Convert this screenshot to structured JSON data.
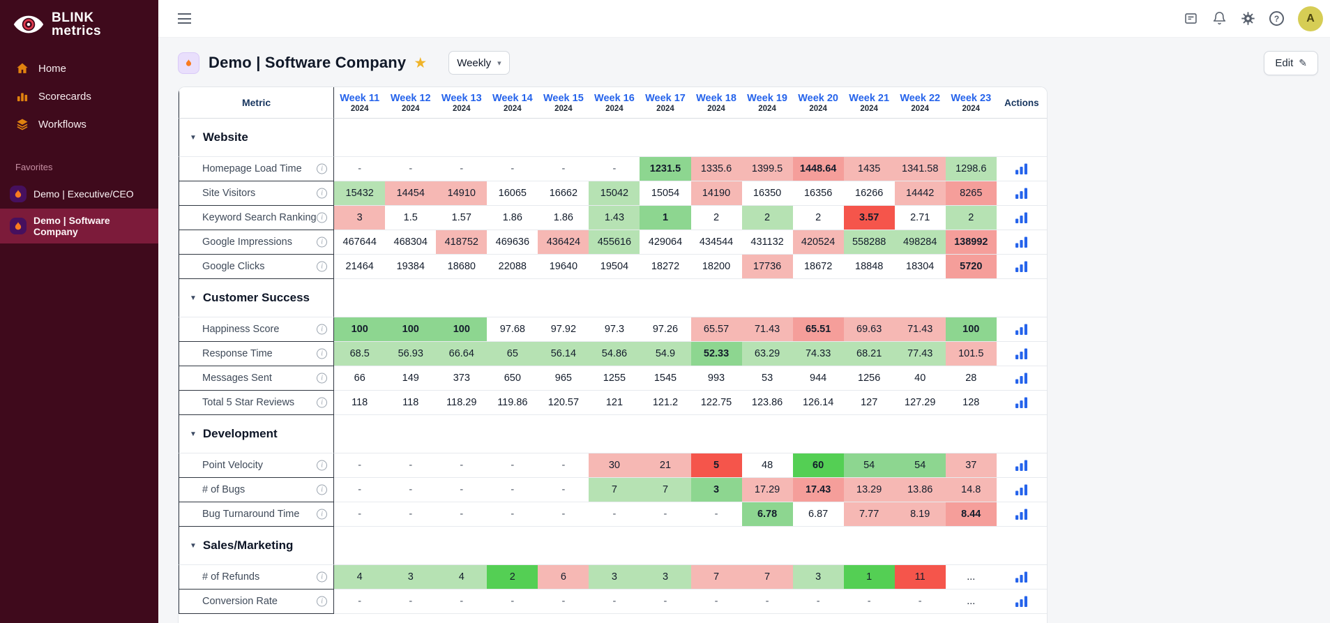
{
  "colors": {
    "sidebar_bg": "#3f0a1c",
    "sidebar_active": "#7c1b3a",
    "icon_orange": "#e0820f",
    "star_yellow": "#f0b429",
    "avatar_bg": "#d6cd55",
    "accent_blue": "#2563eb",
    "green_light": "#b6e2b3",
    "green_mid": "#8dd690",
    "green_bright": "#54cf54",
    "red_light": "#f6b8b4",
    "red_mid": "#f59e9a",
    "red_strong": "#f5554b"
  },
  "icons": {
    "section_triangle": "▼",
    "info": "i",
    "star": "★",
    "pencil": "✎",
    "chevron_down": "▾",
    "help": "?"
  },
  "sidebar": {
    "logo_line1": "BLINK",
    "logo_line2": "metrics",
    "nav": [
      {
        "label": "Home"
      },
      {
        "label": "Scorecards"
      },
      {
        "label": "Workflows"
      }
    ],
    "favorites_label": "Favorites",
    "favorites": [
      {
        "label": "Demo | Executive/CEO"
      },
      {
        "label": "Demo | Software Company"
      }
    ]
  },
  "topbar": {
    "avatar_letter": "A"
  },
  "page": {
    "title": "Demo | Software Company",
    "period": "Weekly",
    "edit_label": "Edit"
  },
  "table": {
    "metric_header": "Metric",
    "actions_header": "Actions",
    "week_columns": [
      {
        "label": "Week 11",
        "year": "2024"
      },
      {
        "label": "Week 12",
        "year": "2024"
      },
      {
        "label": "Week 13",
        "year": "2024"
      },
      {
        "label": "Week 14",
        "year": "2024"
      },
      {
        "label": "Week 15",
        "year": "2024"
      },
      {
        "label": "Week 16",
        "year": "2024"
      },
      {
        "label": "Week 17",
        "year": "2024"
      },
      {
        "label": "Week 18",
        "year": "2024"
      },
      {
        "label": "Week 19",
        "year": "2024"
      },
      {
        "label": "Week 20",
        "year": "2024"
      },
      {
        "label": "Week 21",
        "year": "2024"
      },
      {
        "label": "Week 22",
        "year": "2024"
      },
      {
        "label": "Week 23",
        "year": "2024"
      }
    ],
    "sections": [
      {
        "name": "Website",
        "rows": [
          {
            "metric": "Homepage Load Time",
            "cells": [
              [
                "-"
              ],
              [
                "-"
              ],
              [
                "-"
              ],
              [
                "-"
              ],
              [
                "-"
              ],
              [
                "-"
              ],
              [
                "1231.5",
                "g2",
                1
              ],
              [
                "1335.6",
                "r1"
              ],
              [
                "1399.5",
                "r1"
              ],
              [
                "1448.64",
                "r2",
                1
              ],
              [
                "1435",
                "r1"
              ],
              [
                "1341.58",
                "r1"
              ],
              [
                "1298.6",
                "g1"
              ]
            ]
          },
          {
            "metric": "Site Visitors",
            "cells": [
              [
                "15432",
                "g1"
              ],
              [
                "14454",
                "r1"
              ],
              [
                "14910",
                "r1"
              ],
              [
                "16065"
              ],
              [
                "16662"
              ],
              [
                "15042",
                "g1"
              ],
              [
                "15054"
              ],
              [
                "14190",
                "r1"
              ],
              [
                "16350"
              ],
              [
                "16356"
              ],
              [
                "16266"
              ],
              [
                "14442",
                "r1"
              ],
              [
                "8265",
                "r2"
              ]
            ]
          },
          {
            "metric": "Keyword Search Ranking",
            "cells": [
              [
                "3",
                "r1"
              ],
              [
                "1.5"
              ],
              [
                "1.57"
              ],
              [
                "1.86"
              ],
              [
                "1.86"
              ],
              [
                "1.43",
                "g1"
              ],
              [
                "1",
                "g2",
                1
              ],
              [
                "2"
              ],
              [
                "2",
                "g1"
              ],
              [
                "2"
              ],
              [
                "3.57",
                "r3",
                1
              ],
              [
                "2.71"
              ],
              [
                "2",
                "g1"
              ]
            ]
          },
          {
            "metric": "Google Impressions",
            "cells": [
              [
                "467644"
              ],
              [
                "468304"
              ],
              [
                "418752",
                "r1"
              ],
              [
                "469636"
              ],
              [
                "436424",
                "r1"
              ],
              [
                "455616",
                "g1"
              ],
              [
                "429064"
              ],
              [
                "434544"
              ],
              [
                "431132"
              ],
              [
                "420524",
                "r1"
              ],
              [
                "558288",
                "g1"
              ],
              [
                "498284",
                "g1"
              ],
              [
                "138992",
                "r2",
                1
              ]
            ]
          },
          {
            "metric": "Google Clicks",
            "cells": [
              [
                "21464"
              ],
              [
                "19384"
              ],
              [
                "18680"
              ],
              [
                "22088"
              ],
              [
                "19640"
              ],
              [
                "19504"
              ],
              [
                "18272"
              ],
              [
                "18200"
              ],
              [
                "17736",
                "r1"
              ],
              [
                "18672"
              ],
              [
                "18848"
              ],
              [
                "18304"
              ],
              [
                "5720",
                "r2",
                1
              ]
            ]
          }
        ]
      },
      {
        "name": "Customer Success",
        "rows": [
          {
            "metric": "Happiness Score",
            "cells": [
              [
                "100",
                "g2",
                1
              ],
              [
                "100",
                "g2",
                1
              ],
              [
                "100",
                "g2",
                1
              ],
              [
                "97.68"
              ],
              [
                "97.92"
              ],
              [
                "97.3"
              ],
              [
                "97.26"
              ],
              [
                "65.57",
                "r1"
              ],
              [
                "71.43",
                "r1"
              ],
              [
                "65.51",
                "r2",
                1
              ],
              [
                "69.63",
                "r1"
              ],
              [
                "71.43",
                "r1"
              ],
              [
                "100",
                "g2",
                1
              ]
            ]
          },
          {
            "metric": "Response Time",
            "cells": [
              [
                "68.5",
                "g1"
              ],
              [
                "56.93",
                "g1"
              ],
              [
                "66.64",
                "g1"
              ],
              [
                "65",
                "g1"
              ],
              [
                "56.14",
                "g1"
              ],
              [
                "54.86",
                "g1"
              ],
              [
                "54.9",
                "g1"
              ],
              [
                "52.33",
                "g2",
                1
              ],
              [
                "63.29",
                "g1"
              ],
              [
                "74.33",
                "g1"
              ],
              [
                "68.21",
                "g1"
              ],
              [
                "77.43",
                "g1"
              ],
              [
                "101.5",
                "r1"
              ]
            ]
          },
          {
            "metric": "Messages Sent",
            "cells": [
              [
                "66"
              ],
              [
                "149"
              ],
              [
                "373"
              ],
              [
                "650"
              ],
              [
                "965"
              ],
              [
                "1255"
              ],
              [
                "1545"
              ],
              [
                "993"
              ],
              [
                "53"
              ],
              [
                "944"
              ],
              [
                "1256"
              ],
              [
                "40"
              ],
              [
                "28"
              ]
            ]
          },
          {
            "metric": "Total 5 Star Reviews",
            "cells": [
              [
                "118"
              ],
              [
                "118"
              ],
              [
                "118.29"
              ],
              [
                "119.86"
              ],
              [
                "120.57"
              ],
              [
                "121"
              ],
              [
                "121.2"
              ],
              [
                "122.75"
              ],
              [
                "123.86"
              ],
              [
                "126.14"
              ],
              [
                "127"
              ],
              [
                "127.29"
              ],
              [
                "128"
              ]
            ]
          }
        ]
      },
      {
        "name": "Development",
        "rows": [
          {
            "metric": "Point Velocity",
            "cells": [
              [
                "-"
              ],
              [
                "-"
              ],
              [
                "-"
              ],
              [
                "-"
              ],
              [
                "-"
              ],
              [
                "30",
                "r1"
              ],
              [
                "21",
                "r1"
              ],
              [
                "5",
                "r3",
                1
              ],
              [
                "48"
              ],
              [
                "60",
                "g3",
                1
              ],
              [
                "54",
                "g2"
              ],
              [
                "54",
                "g2"
              ],
              [
                "37",
                "r1"
              ]
            ]
          },
          {
            "metric": "# of Bugs",
            "cells": [
              [
                "-"
              ],
              [
                "-"
              ],
              [
                "-"
              ],
              [
                "-"
              ],
              [
                "-"
              ],
              [
                "7",
                "g1"
              ],
              [
                "7",
                "g1"
              ],
              [
                "3",
                "g2",
                1
              ],
              [
                "17.29",
                "r1"
              ],
              [
                "17.43",
                "r2",
                1
              ],
              [
                "13.29",
                "r1"
              ],
              [
                "13.86",
                "r1"
              ],
              [
                "14.8",
                "r1"
              ]
            ]
          },
          {
            "metric": "Bug Turnaround Time",
            "cells": [
              [
                "-"
              ],
              [
                "-"
              ],
              [
                "-"
              ],
              [
                "-"
              ],
              [
                "-"
              ],
              [
                "-"
              ],
              [
                "-"
              ],
              [
                "-"
              ],
              [
                "6.78",
                "g2",
                1
              ],
              [
                "6.87"
              ],
              [
                "7.77",
                "r1"
              ],
              [
                "8.19",
                "r1"
              ],
              [
                "8.44",
                "r2",
                1
              ]
            ]
          }
        ]
      },
      {
        "name": "Sales/Marketing",
        "rows": [
          {
            "metric": "# of Refunds",
            "cells": [
              [
                "4",
                "g1"
              ],
              [
                "3",
                "g1"
              ],
              [
                "4",
                "g1"
              ],
              [
                "2",
                "g3"
              ],
              [
                "6",
                "r1"
              ],
              [
                "3",
                "g1"
              ],
              [
                "3",
                "g1"
              ],
              [
                "7",
                "r1"
              ],
              [
                "7",
                "r1"
              ],
              [
                "3",
                "g1"
              ],
              [
                "1",
                "g3"
              ],
              [
                "11",
                "r3"
              ],
              [
                "..."
              ]
            ]
          },
          {
            "metric": "Conversion Rate",
            "cells": [
              [
                "-"
              ],
              [
                "-"
              ],
              [
                "-"
              ],
              [
                "-"
              ],
              [
                "-"
              ],
              [
                "-"
              ],
              [
                "-"
              ],
              [
                "-"
              ],
              [
                "-"
              ],
              [
                "-"
              ],
              [
                "-"
              ],
              [
                "-"
              ],
              [
                "..."
              ]
            ]
          }
        ]
      }
    ]
  }
}
